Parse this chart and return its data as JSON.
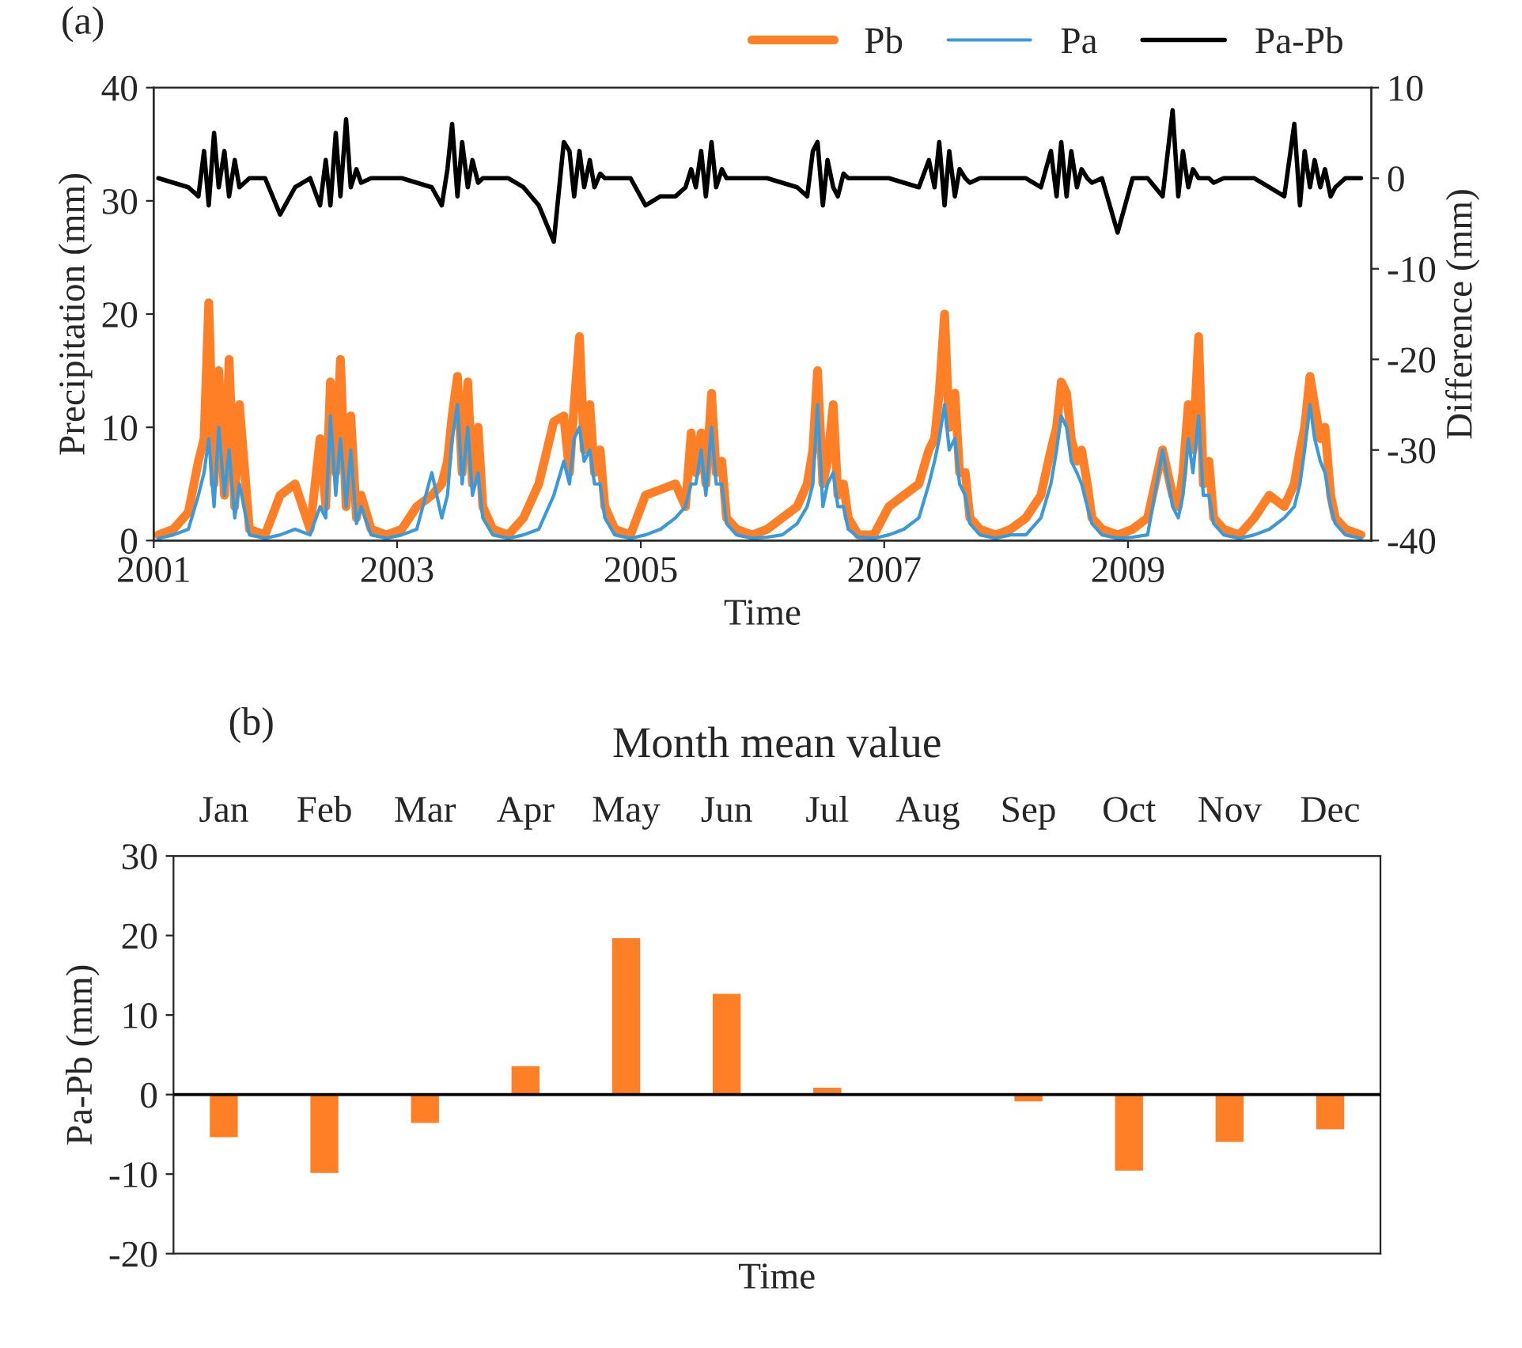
{
  "chart_data": [
    {
      "type": "line",
      "xlabel": "Time",
      "ylabel": "Precipitation (mm)",
      "y2label": "Difference (mm)",
      "annotations": [
        "(a)"
      ],
      "x": [
        "2001-01-15",
        "2001-03-01",
        "2001-04-15",
        "2001-05-15",
        "2001-06-01",
        "2001-06-15",
        "2001-07-01",
        "2001-07-15",
        "2001-08-01",
        "2001-08-15",
        "2001-09-01",
        "2001-09-15",
        "2001-10-15",
        "2001-12-01",
        "2002-01-15",
        "2002-03-01",
        "2002-04-15",
        "2002-05-15",
        "2002-06-01",
        "2002-06-15",
        "2002-07-01",
        "2002-07-15",
        "2002-08-01",
        "2002-08-15",
        "2002-09-01",
        "2002-09-15",
        "2002-10-15",
        "2002-12-01",
        "2003-01-15",
        "2003-03-01",
        "2003-04-15",
        "2003-05-15",
        "2003-06-01",
        "2003-06-15",
        "2003-07-01",
        "2003-07-15",
        "2003-08-01",
        "2003-08-15",
        "2003-09-01",
        "2003-09-15",
        "2003-10-15",
        "2003-12-01",
        "2004-01-15",
        "2004-03-01",
        "2004-04-15",
        "2004-05-15",
        "2004-06-01",
        "2004-06-15",
        "2004-07-01",
        "2004-07-15",
        "2004-08-01",
        "2004-08-15",
        "2004-09-01",
        "2004-09-15",
        "2004-10-15",
        "2004-12-01",
        "2005-01-15",
        "2005-03-01",
        "2005-04-15",
        "2005-05-15",
        "2005-06-01",
        "2005-06-15",
        "2005-07-01",
        "2005-07-15",
        "2005-08-01",
        "2005-08-15",
        "2005-09-01",
        "2005-09-15",
        "2005-10-15",
        "2005-12-01",
        "2006-01-15",
        "2006-03-01",
        "2006-04-15",
        "2006-05-15",
        "2006-06-01",
        "2006-06-15",
        "2006-07-01",
        "2006-07-15",
        "2006-08-01",
        "2006-08-15",
        "2006-09-01",
        "2006-09-15",
        "2006-10-15",
        "2006-12-01",
        "2007-01-15",
        "2007-03-01",
        "2007-04-15",
        "2007-05-15",
        "2007-06-01",
        "2007-06-15",
        "2007-07-01",
        "2007-07-15",
        "2007-08-01",
        "2007-08-15",
        "2007-09-01",
        "2007-09-15",
        "2007-10-15",
        "2007-12-01",
        "2008-01-15",
        "2008-03-01",
        "2008-04-15",
        "2008-05-15",
        "2008-06-01",
        "2008-06-15",
        "2008-07-01",
        "2008-07-15",
        "2008-08-01",
        "2008-08-15",
        "2008-09-01",
        "2008-09-15",
        "2008-10-15",
        "2008-12-01",
        "2009-01-15",
        "2009-03-01",
        "2009-04-15",
        "2009-05-15",
        "2009-06-01",
        "2009-06-15",
        "2009-07-01",
        "2009-07-15",
        "2009-08-01",
        "2009-08-15",
        "2009-09-01",
        "2009-09-15",
        "2009-10-15",
        "2009-12-01",
        "2010-01-15",
        "2010-03-01",
        "2010-04-15",
        "2010-05-15",
        "2010-06-01",
        "2010-06-15",
        "2010-07-01",
        "2010-07-15",
        "2010-08-01",
        "2010-08-15",
        "2010-09-01",
        "2010-09-15",
        "2010-10-15",
        "2010-12-01"
      ],
      "series": [
        {
          "name": "Pb",
          "color": "#ff7f27",
          "values": [
            0.5,
            1,
            2.5,
            7,
            9,
            21,
            5,
            15,
            4,
            16,
            3,
            12,
            1,
            0.5,
            4,
            5,
            1,
            9,
            3,
            14,
            6,
            16,
            3,
            11,
            2,
            4,
            1,
            0.5,
            1,
            3,
            4,
            5,
            7,
            11,
            14.5,
            6,
            14,
            5,
            10,
            3,
            1,
            0.5,
            2,
            5,
            10.5,
            11,
            6,
            12,
            18,
            8,
            12,
            6,
            8,
            3,
            1,
            0.5,
            4,
            4.5,
            5,
            3,
            9.5,
            6,
            9.5,
            5,
            13,
            6,
            7,
            2,
            1,
            0.5,
            1,
            2,
            3,
            5,
            8,
            15,
            5,
            7,
            12,
            4,
            5,
            2,
            0.5,
            0.5,
            3,
            4,
            5,
            8,
            9,
            13,
            20,
            10,
            13,
            6,
            6,
            2,
            1,
            0.5,
            1,
            2,
            4,
            8,
            10,
            14,
            13,
            9,
            7,
            8,
            5,
            2,
            1,
            0.5,
            1,
            2,
            8,
            4,
            3,
            6,
            12,
            8,
            18,
            5,
            7,
            2,
            1,
            0.5,
            2,
            4,
            3,
            5,
            8,
            10,
            14.5,
            12,
            9,
            10,
            4,
            2,
            1,
            0.5
          ]
        },
        {
          "name": "Pa",
          "color": "#3a9ad9",
          "values": [
            0.2,
            0.5,
            1,
            4,
            6,
            9,
            3,
            10,
            4,
            8,
            2,
            5,
            0.5,
            0.2,
            0.5,
            1,
            0.5,
            3,
            2,
            11,
            4,
            9,
            3,
            8,
            1.5,
            3,
            0.5,
            0.2,
            0.5,
            1,
            6,
            2,
            4,
            9,
            12,
            5,
            10,
            4,
            6,
            2,
            0.5,
            0.2,
            0.5,
            1,
            4,
            7,
            5,
            9,
            10,
            7,
            8,
            5,
            5,
            2,
            0.5,
            0.2,
            0.5,
            1,
            2,
            3,
            5,
            5,
            8,
            4,
            10,
            5,
            5,
            1.5,
            0.5,
            0.2,
            0.3,
            0.5,
            1.5,
            3,
            5,
            12,
            3,
            5,
            6,
            3,
            3,
            1,
            0.3,
            0.2,
            0.5,
            1,
            2,
            5,
            7,
            9,
            12,
            8,
            9,
            5,
            4,
            1.5,
            0.5,
            0.2,
            0.5,
            0.5,
            2,
            5,
            8,
            11,
            10,
            7,
            6,
            5,
            3,
            1.5,
            0.5,
            0.2,
            0.3,
            0.5,
            8,
            3,
            2,
            4,
            9,
            6,
            11,
            4,
            4,
            1.5,
            0.5,
            0.2,
            0.5,
            1,
            2,
            3,
            5,
            8,
            12,
            9,
            7,
            6,
            3,
            1.5,
            0.5,
            0.2
          ]
        },
        {
          "name": "Pa-Pb",
          "color": "#000000",
          "axis": "y2",
          "values": [
            0,
            -0.5,
            -1,
            -2,
            3,
            -3,
            5,
            -1,
            3,
            -2,
            2,
            -1,
            0,
            0,
            -4,
            -1,
            0,
            -3,
            2,
            -3,
            5,
            -2,
            6.5,
            -1,
            1,
            -0.5,
            0,
            0,
            0,
            -0.5,
            -1,
            -3,
            1,
            6,
            -2,
            4,
            -1,
            2,
            -0.5,
            0,
            0,
            0,
            -1,
            -3,
            -7,
            4,
            3,
            -2,
            3,
            -1,
            2,
            -1,
            0.5,
            0,
            0,
            0,
            -3,
            -2,
            -2,
            -1,
            1,
            -1,
            3,
            -2,
            4,
            -1,
            1,
            0,
            0,
            0,
            0,
            -0.5,
            -1,
            -2,
            3,
            4,
            -3,
            2,
            -1,
            -2,
            0.5,
            0,
            0,
            0,
            0,
            -0.5,
            -1,
            2,
            -1,
            4,
            -3,
            3,
            -2,
            1,
            0,
            -0.5,
            0,
            0,
            0,
            0,
            -1,
            3,
            -2,
            4,
            -2,
            3,
            -1,
            1,
            0,
            -0.5,
            0,
            -6,
            0,
            0,
            -2,
            7.5,
            -2,
            3,
            -1,
            1,
            0,
            0,
            0,
            -0.5,
            0,
            0,
            0,
            -1,
            -2,
            6,
            -3,
            3,
            -1,
            2,
            -1,
            1,
            -2,
            -1,
            0,
            0
          ]
        }
      ],
      "xlim": [
        "2001",
        "2011"
      ],
      "xticks": [
        "2001",
        "2003",
        "2005",
        "2007",
        "2009"
      ],
      "ylim": [
        0,
        40
      ],
      "yticks": [
        0,
        10,
        20,
        30,
        40
      ],
      "y2lim": [
        -40,
        10
      ],
      "y2ticks": [
        -40,
        -30,
        -20,
        -10,
        0,
        10
      ],
      "legend": "top right",
      "grid": false,
      "marker": "none",
      "line_style": "solid"
    },
    {
      "type": "bar",
      "title": "Month mean value",
      "xlabel": "Time",
      "ylabel": "Pa-Pb (mm)",
      "annotations": [
        "(b)"
      ],
      "categories": [
        "Jan",
        "Feb",
        "Mar",
        "Apr",
        "May",
        "Jun",
        "Jul",
        "Aug",
        "Sep",
        "Oct",
        "Nov",
        "Dec"
      ],
      "values": [
        -5.5,
        -10,
        -3.7,
        3.7,
        19.8,
        12.8,
        1,
        null,
        -1,
        -9.7,
        -6.1,
        -4.5
      ],
      "color": "#ff7f27",
      "ylim": [
        -20,
        30
      ],
      "yticks": [
        -20,
        -10,
        0,
        10,
        20,
        30
      ],
      "ref_lines": [
        {
          "axis": "y",
          "value": 0,
          "color": "#000000"
        }
      ],
      "grid": false,
      "legend": false
    }
  ]
}
